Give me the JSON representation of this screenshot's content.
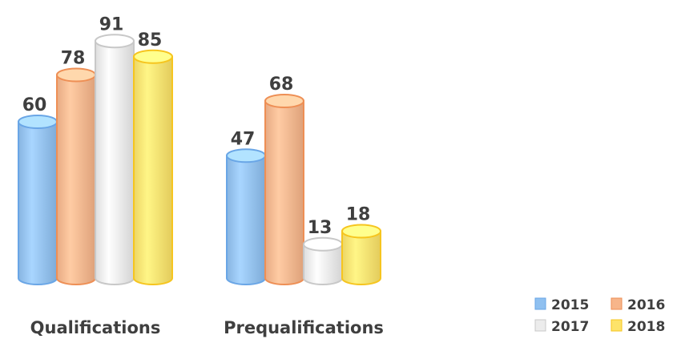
{
  "chart_data": {
    "type": "bar",
    "style": "3d-cylinder",
    "categories": [
      "Qualifications",
      "Prequalifications"
    ],
    "series": [
      {
        "name": "2015",
        "values": [
          60,
          47
        ],
        "color": "#8fc0f0",
        "edge": "#6aa6e6"
      },
      {
        "name": "2016",
        "values": [
          78,
          68
        ],
        "color": "#f7b58a",
        "edge": "#ee8f55"
      },
      {
        "name": "2017",
        "values": [
          91,
          13
        ],
        "color": "#ececec",
        "edge": "#c8c8c8"
      },
      {
        "name": "2018",
        "values": [
          85,
          18
        ],
        "color": "#fde36a",
        "edge": "#f6c51f"
      }
    ],
    "ylim": [
      0,
      100
    ],
    "grid": false,
    "legend": "bottom-right"
  }
}
